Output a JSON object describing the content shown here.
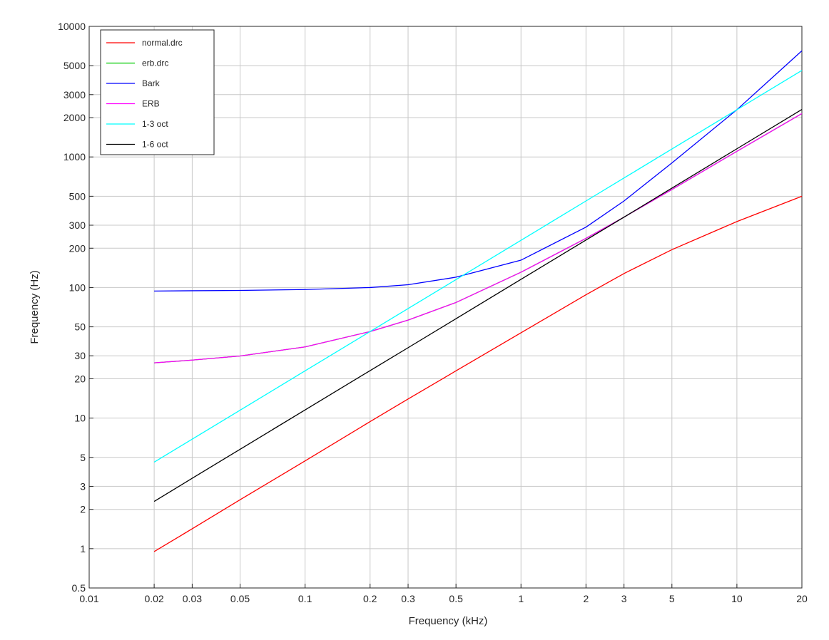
{
  "chart_data": {
    "type": "line",
    "xlabel": "Frequency (kHz)",
    "ylabel": "Frequency (Hz)",
    "xscale": "log",
    "yscale": "log",
    "xlim": [
      0.01,
      20
    ],
    "ylim": [
      0.5,
      10000
    ],
    "grid": true,
    "legend_position": "top-left",
    "xticks": [
      0.01,
      0.02,
      0.03,
      0.05,
      0.1,
      0.2,
      0.3,
      0.5,
      1,
      2,
      3,
      5,
      10,
      20
    ],
    "xtick_labels": [
      "0.01",
      "0.02",
      "0.03",
      "0.05",
      "0.1",
      "0.2",
      "0.3",
      "0.5",
      "1",
      "2",
      "3",
      "5",
      "10",
      "20"
    ],
    "yticks": [
      0.5,
      1,
      2,
      3,
      5,
      10,
      20,
      30,
      50,
      100,
      200,
      300,
      500,
      1000,
      2000,
      3000,
      5000,
      10000
    ],
    "ytick_labels": [
      "0.5",
      "1",
      "2",
      "3",
      "5",
      "10",
      "20",
      "30",
      "50",
      "100",
      "200",
      "300",
      "500",
      "1000",
      "2000",
      "3000",
      "5000",
      "10000"
    ],
    "x": [
      0.02,
      0.03,
      0.05,
      0.1,
      0.2,
      0.3,
      0.5,
      1,
      2,
      3,
      5,
      10,
      20
    ],
    "series": [
      {
        "name": "normal.drc",
        "color": "#ff0000",
        "values": [
          0.95,
          1.42,
          2.37,
          4.7,
          9.4,
          14,
          23,
          45,
          88,
          128,
          195,
          320,
          500
        ]
      },
      {
        "name": "erb.drc",
        "color": "#00cc00",
        "values": [
          26.5,
          27.8,
          29.9,
          35.1,
          46,
          56.3,
          76.8,
          131,
          238,
          346,
          563,
          1105,
          2150
        ]
      },
      {
        "name": "Bark",
        "color": "#0000ff",
        "values": [
          94,
          94.5,
          95,
          96.5,
          100,
          105,
          120,
          162,
          290,
          460,
          900,
          2300,
          6500
        ]
      },
      {
        "name": "ERB",
        "color": "#ff00ff",
        "values": [
          26.5,
          27.8,
          29.9,
          35.1,
          46,
          56.3,
          76.8,
          131,
          238,
          346,
          563,
          1105,
          2150
        ]
      },
      {
        "name": "1-3 oct",
        "color": "#00ffff",
        "values": [
          4.6,
          6.9,
          11.5,
          23,
          46,
          69,
          115,
          230,
          460,
          690,
          1150,
          2300,
          4600
        ]
      },
      {
        "name": "1-6 oct",
        "color": "#000000",
        "values": [
          2.3,
          3.46,
          5.77,
          11.55,
          23.1,
          34.6,
          57.7,
          115.5,
          231,
          346,
          577,
          1155,
          2310
        ]
      }
    ]
  }
}
